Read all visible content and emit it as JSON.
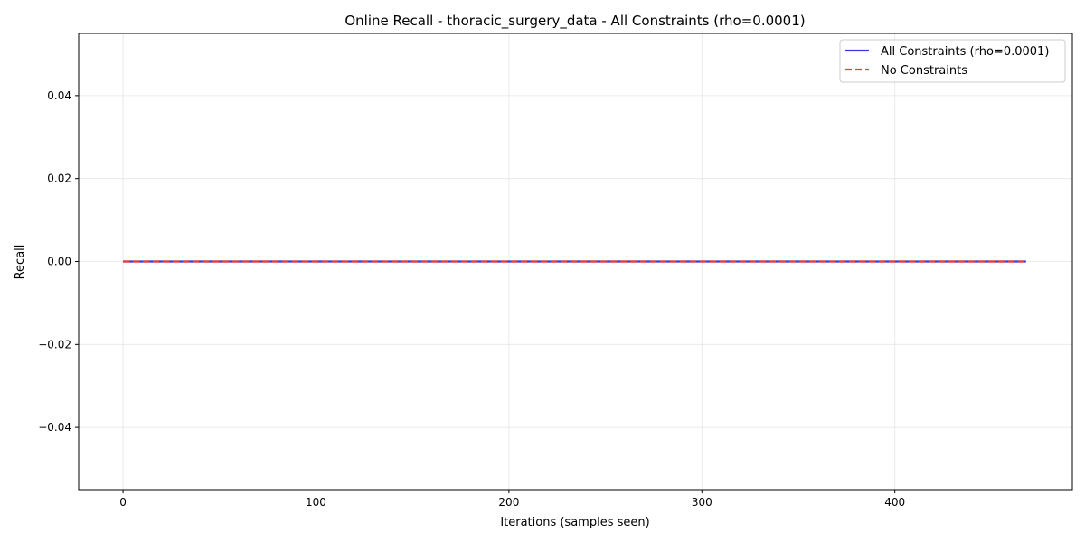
{
  "chart_data": {
    "type": "line",
    "title": "Online Recall - thoracic_surgery_data - All Constraints (rho=0.0001)",
    "xlabel": "Iterations (samples seen)",
    "ylabel": "Recall",
    "xlim": [
      -23,
      492
    ],
    "ylim": [
      -0.055,
      0.055
    ],
    "xticks": [
      0,
      100,
      200,
      300,
      400
    ],
    "yticks": [
      -0.04,
      -0.02,
      0.0,
      0.02,
      0.04
    ],
    "ytick_labels": [
      "−0.04",
      "−0.02",
      "0.00",
      "0.02",
      "0.04"
    ],
    "grid": true,
    "legend_position": "top-right",
    "series": [
      {
        "name": "All Constraints (rho=0.0001)",
        "color": "#3b3bdc",
        "style": "solid",
        "x": [
          0,
          468
        ],
        "y": [
          0.0,
          0.0
        ]
      },
      {
        "name": "No Constraints",
        "color": "#ee3b3b",
        "style": "dashed",
        "x": [
          0,
          468
        ],
        "y": [
          0.0,
          0.0
        ]
      }
    ]
  }
}
